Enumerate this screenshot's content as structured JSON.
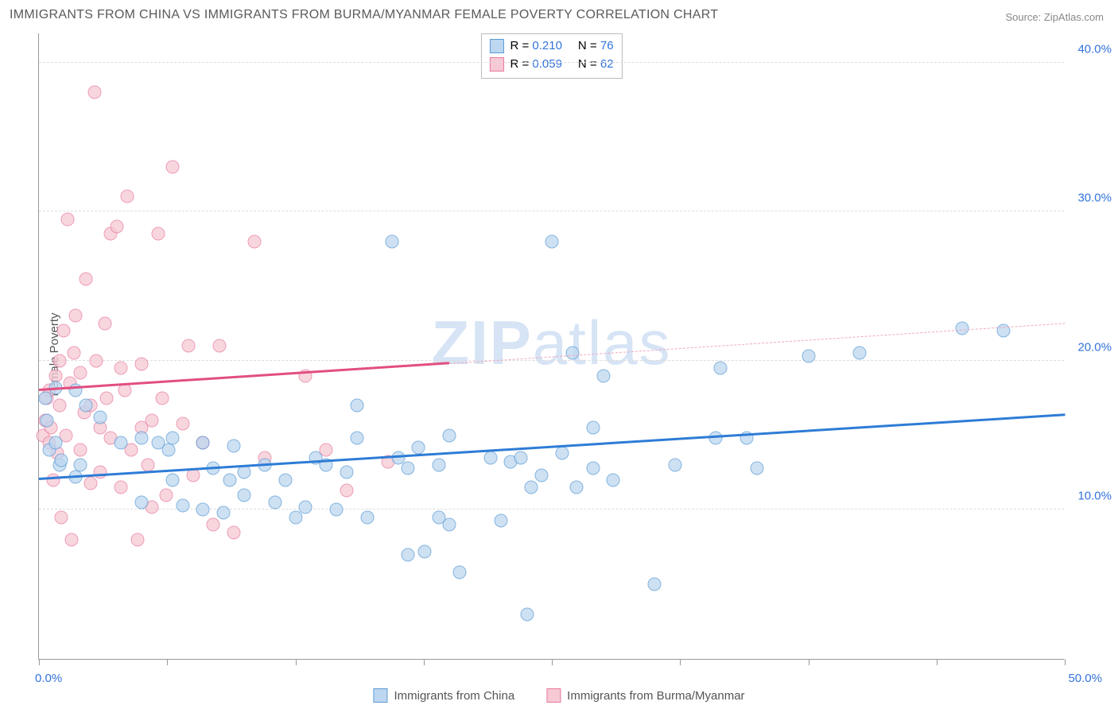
{
  "title": "IMMIGRANTS FROM CHINA VS IMMIGRANTS FROM BURMA/MYANMAR FEMALE POVERTY CORRELATION CHART",
  "source": "Source: ZipAtlas.com",
  "watermark_bold": "ZIP",
  "watermark_light": "atlas",
  "y_axis_label": "Female Poverty",
  "chart": {
    "type": "scatter",
    "xlim": [
      0,
      50
    ],
    "ylim": [
      0,
      42
    ],
    "x_ticks": [
      0,
      6.25,
      12.5,
      18.75,
      25,
      31.25,
      37.5,
      43.75,
      50
    ],
    "x_tick_labels": {
      "0": "0.0%",
      "50": "50.0%"
    },
    "y_ticks": [
      10,
      20,
      30,
      40
    ],
    "y_tick_labels": [
      "10.0%",
      "20.0%",
      "30.0%",
      "40.0%"
    ],
    "grid_color": "#dddddd",
    "background_color": "#ffffff",
    "marker_radius": 8.5,
    "series_a": {
      "label": "Immigrants from China",
      "fill": "#bdd7f0",
      "stroke": "#5b9bd5",
      "r_value": "0.210",
      "n_value": "76",
      "trend": {
        "x1": 0,
        "y1": 12.0,
        "x2": 50,
        "y2": 16.3,
        "color": "#2e7cd6",
        "width": 3
      },
      "points": [
        [
          0.3,
          17.5
        ],
        [
          0.4,
          16.0
        ],
        [
          0.5,
          14.0
        ],
        [
          0.8,
          14.5
        ],
        [
          0.8,
          18.2
        ],
        [
          1.0,
          13.0
        ],
        [
          1.1,
          13.3
        ],
        [
          1.8,
          12.2
        ],
        [
          1.8,
          18.0
        ],
        [
          2.0,
          13.0
        ],
        [
          2.3,
          17.0
        ],
        [
          3.0,
          16.2
        ],
        [
          4.0,
          14.5
        ],
        [
          5.0,
          14.8
        ],
        [
          5.0,
          10.5
        ],
        [
          5.8,
          14.5
        ],
        [
          6.3,
          14.0
        ],
        [
          6.5,
          12.0
        ],
        [
          6.5,
          14.8
        ],
        [
          7.0,
          10.3
        ],
        [
          8.0,
          14.5
        ],
        [
          8.0,
          10.0
        ],
        [
          8.5,
          12.8
        ],
        [
          9.0,
          9.8
        ],
        [
          9.3,
          12.0
        ],
        [
          9.5,
          14.3
        ],
        [
          10.0,
          12.5
        ],
        [
          10.0,
          11.0
        ],
        [
          11.0,
          13.0
        ],
        [
          11.5,
          10.5
        ],
        [
          12.0,
          12.0
        ],
        [
          12.5,
          9.5
        ],
        [
          13.0,
          10.2
        ],
        [
          13.5,
          13.5
        ],
        [
          14.0,
          13.0
        ],
        [
          14.5,
          10.0
        ],
        [
          15.0,
          12.5
        ],
        [
          15.5,
          14.8
        ],
        [
          15.5,
          17.0
        ],
        [
          16.0,
          9.5
        ],
        [
          17.2,
          28.0
        ],
        [
          17.5,
          13.5
        ],
        [
          18.0,
          12.8
        ],
        [
          18.0,
          7.0
        ],
        [
          18.5,
          14.2
        ],
        [
          18.8,
          7.2
        ],
        [
          19.5,
          9.5
        ],
        [
          19.5,
          13.0
        ],
        [
          20.0,
          9.0
        ],
        [
          20.0,
          15.0
        ],
        [
          20.5,
          5.8
        ],
        [
          22.0,
          13.5
        ],
        [
          22.5,
          9.3
        ],
        [
          23.0,
          13.2
        ],
        [
          23.5,
          13.5
        ],
        [
          23.8,
          3.0
        ],
        [
          24.0,
          11.5
        ],
        [
          24.5,
          12.3
        ],
        [
          25.0,
          28.0
        ],
        [
          25.5,
          13.8
        ],
        [
          26.0,
          20.5
        ],
        [
          26.2,
          11.5
        ],
        [
          27.0,
          15.5
        ],
        [
          27.0,
          12.8
        ],
        [
          27.5,
          19.0
        ],
        [
          28.0,
          12.0
        ],
        [
          30.0,
          5.0
        ],
        [
          31.0,
          13.0
        ],
        [
          33.0,
          14.8
        ],
        [
          33.2,
          19.5
        ],
        [
          34.5,
          14.8
        ],
        [
          35.0,
          12.8
        ],
        [
          37.5,
          20.3
        ],
        [
          40.0,
          20.5
        ],
        [
          45.0,
          22.2
        ],
        [
          47.0,
          22.0
        ]
      ]
    },
    "series_b": {
      "label": "Immigrants from Burma/Myanmar",
      "fill": "#f6c9d4",
      "stroke": "#e87ba0",
      "r_value": "0.059",
      "n_value": "62",
      "trend_solid": {
        "x1": 0,
        "y1": 18.0,
        "x2": 20,
        "y2": 19.8,
        "color": "#e24e81",
        "width": 2.5
      },
      "trend_dash": {
        "x1": 20,
        "y1": 19.8,
        "x2": 50,
        "y2": 22.5,
        "color": "#f0a8bd",
        "width": 1
      },
      "points": [
        [
          0.2,
          15.0
        ],
        [
          0.3,
          16.0
        ],
        [
          0.4,
          17.5
        ],
        [
          0.5,
          14.5
        ],
        [
          0.5,
          18.0
        ],
        [
          0.6,
          15.5
        ],
        [
          0.7,
          12.0
        ],
        [
          0.8,
          19.0
        ],
        [
          0.9,
          13.8
        ],
        [
          1.0,
          20.0
        ],
        [
          1.0,
          17.0
        ],
        [
          1.1,
          9.5
        ],
        [
          1.2,
          22.0
        ],
        [
          1.3,
          15.0
        ],
        [
          1.4,
          29.5
        ],
        [
          1.5,
          18.5
        ],
        [
          1.6,
          8.0
        ],
        [
          1.7,
          20.5
        ],
        [
          1.8,
          23.0
        ],
        [
          2.0,
          14.0
        ],
        [
          2.0,
          19.2
        ],
        [
          2.2,
          16.5
        ],
        [
          2.3,
          25.5
        ],
        [
          2.5,
          11.8
        ],
        [
          2.5,
          17.0
        ],
        [
          2.7,
          38.0
        ],
        [
          2.8,
          20.0
        ],
        [
          3.0,
          15.5
        ],
        [
          3.0,
          12.5
        ],
        [
          3.2,
          22.5
        ],
        [
          3.3,
          17.5
        ],
        [
          3.5,
          14.8
        ],
        [
          3.5,
          28.5
        ],
        [
          3.8,
          29.0
        ],
        [
          4.0,
          19.5
        ],
        [
          4.0,
          11.5
        ],
        [
          4.2,
          18.0
        ],
        [
          4.3,
          31.0
        ],
        [
          4.5,
          14.0
        ],
        [
          4.8,
          8.0
        ],
        [
          5.0,
          15.5
        ],
        [
          5.0,
          19.8
        ],
        [
          5.3,
          13.0
        ],
        [
          5.5,
          16.0
        ],
        [
          5.5,
          10.2
        ],
        [
          5.8,
          28.5
        ],
        [
          6.0,
          17.5
        ],
        [
          6.2,
          11.0
        ],
        [
          6.5,
          33.0
        ],
        [
          7.0,
          15.8
        ],
        [
          7.3,
          21.0
        ],
        [
          7.5,
          12.3
        ],
        [
          8.0,
          14.5
        ],
        [
          8.5,
          9.0
        ],
        [
          8.8,
          21.0
        ],
        [
          9.5,
          8.5
        ],
        [
          10.5,
          28.0
        ],
        [
          11.0,
          13.5
        ],
        [
          13.0,
          19.0
        ],
        [
          14.0,
          14.0
        ],
        [
          15.0,
          11.3
        ],
        [
          17.0,
          13.2
        ]
      ]
    }
  },
  "legend_labels": {
    "r_prefix": "R  =  ",
    "n_prefix": "N  =  "
  }
}
